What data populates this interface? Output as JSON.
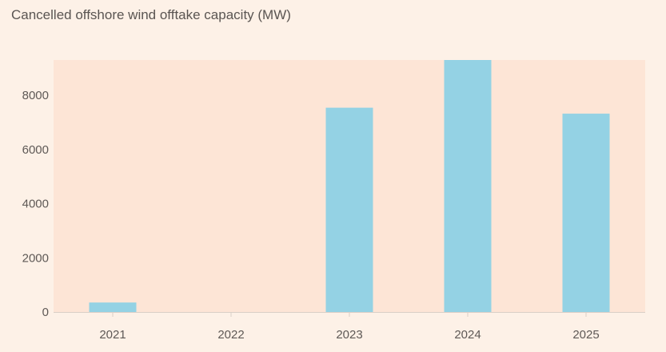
{
  "chart_data": {
    "type": "bar",
    "title": "Cancelled offshore wind offtake capacity (MW)",
    "xlabel": "",
    "ylabel": "",
    "categories": [
      "2021",
      "2022",
      "2023",
      "2024",
      "2025"
    ],
    "values": [
      350,
      0,
      7540,
      9300,
      7320
    ],
    "ylim": [
      0,
      9300
    ],
    "yticks": [
      0,
      2000,
      4000,
      6000,
      8000
    ],
    "grid": false,
    "colors": {
      "bar": "#94d2e4",
      "plot_background": "#fde5d6",
      "page_background": "#fdf1e7",
      "axis": "#d9cfc7"
    }
  }
}
